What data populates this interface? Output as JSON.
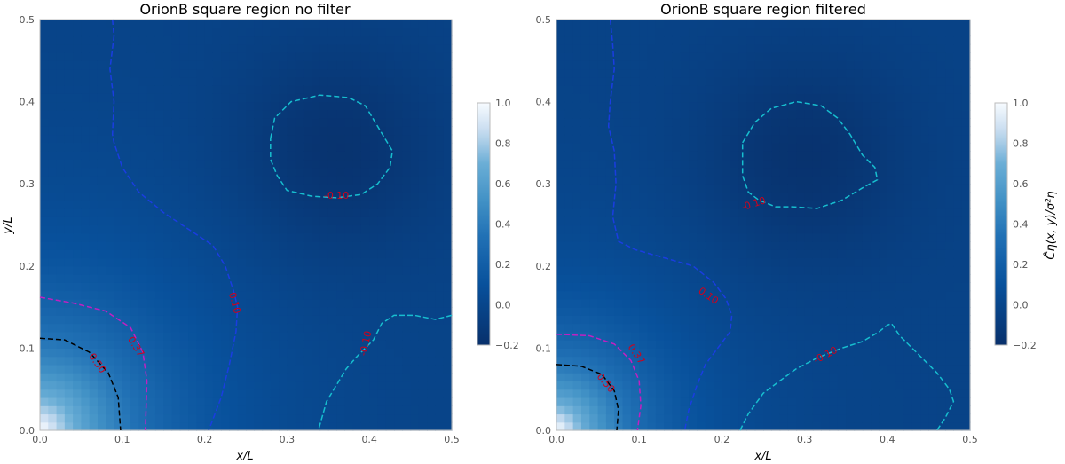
{
  "chart_data": [
    {
      "type": "heatmap",
      "title": "OrionB square region no filter",
      "xlabel": "x/L",
      "ylabel": "y/L",
      "xlim": [
        0.0,
        0.5
      ],
      "ylim": [
        0.0,
        0.5
      ],
      "xticks": [
        "0.0",
        "0.1",
        "0.2",
        "0.3",
        "0.4",
        "0.5"
      ],
      "yticks": [
        "0.0",
        "0.1",
        "0.2",
        "0.3",
        "0.4",
        "0.5"
      ],
      "colorbar": {
        "label": "",
        "range": [
          -0.2,
          1.0
        ],
        "ticks": [
          "−0.2",
          "0.0",
          "0.2",
          "0.4",
          "0.6",
          "0.8",
          "1.0"
        ],
        "colormap": "Blues_r"
      },
      "field": {
        "core_scale": 0.11,
        "min_center": [
          0.36,
          0.34
        ],
        "min_value": -0.15
      },
      "contours": [
        {
          "level": "0.50",
          "color": "#000000",
          "points": [
            [
              0.0,
              0.112
            ],
            [
              0.03,
              0.11
            ],
            [
              0.06,
              0.095
            ],
            [
              0.083,
              0.07
            ],
            [
              0.095,
              0.04
            ],
            [
              0.098,
              0.0
            ]
          ],
          "label": {
            "text": "0.50",
            "at": [
              0.07,
              0.082
            ],
            "angle": 55
          }
        },
        {
          "level": "0.37",
          "color": "#c21fc2",
          "points": [
            [
              0.0,
              0.162
            ],
            [
              0.04,
              0.155
            ],
            [
              0.08,
              0.145
            ],
            [
              0.11,
              0.125
            ],
            [
              0.125,
              0.095
            ],
            [
              0.13,
              0.06
            ],
            [
              0.128,
              0.0
            ]
          ],
          "label": {
            "text": "0.37",
            "at": [
              0.117,
              0.102
            ],
            "angle": 58
          }
        },
        {
          "level": "0.10",
          "color": "#1a3de0",
          "points": [
            [
              0.0,
              0.0
            ]
          ],
          "label": null
        },
        {
          "level": "0.10",
          "color": "#1a3de0",
          "points": [
            [
              0.088,
              0.5
            ],
            [
              0.09,
              0.48
            ],
            [
              0.085,
              0.44
            ],
            [
              0.09,
              0.4
            ],
            [
              0.088,
              0.36
            ],
            [
              0.09,
              0.35
            ],
            [
              0.1,
              0.32
            ],
            [
              0.12,
              0.29
            ],
            [
              0.15,
              0.265
            ],
            [
              0.18,
              0.245
            ],
            [
              0.21,
              0.225
            ],
            [
              0.225,
              0.2
            ],
            [
              0.235,
              0.17
            ],
            [
              0.24,
              0.15
            ],
            [
              0.238,
              0.12
            ],
            [
              0.23,
              0.08
            ],
            [
              0.22,
              0.04
            ],
            [
              0.205,
              0.0
            ]
          ],
          "label": {
            "text": "0.10",
            "at": [
              0.237,
              0.155
            ],
            "angle": 75
          }
        },
        {
          "level": "-0.10",
          "color": "#17becf",
          "points": [
            [
              0.28,
              0.355
            ],
            [
              0.285,
              0.38
            ],
            [
              0.305,
              0.4
            ],
            [
              0.34,
              0.408
            ],
            [
              0.375,
              0.405
            ],
            [
              0.395,
              0.395
            ],
            [
              0.41,
              0.37
            ],
            [
              0.428,
              0.34
            ],
            [
              0.425,
              0.32
            ],
            [
              0.41,
              0.3
            ],
            [
              0.39,
              0.287
            ],
            [
              0.36,
              0.283
            ],
            [
              0.33,
              0.285
            ],
            [
              0.3,
              0.292
            ],
            [
              0.288,
              0.31
            ],
            [
              0.28,
              0.33
            ],
            [
              0.28,
              0.355
            ]
          ],
          "label": {
            "text": "-0.10",
            "at": [
              0.36,
              0.286
            ],
            "angle": 0
          }
        },
        {
          "level": "-0.10",
          "color": "#17becf",
          "points": [
            [
              0.5,
              0.14
            ],
            [
              0.48,
              0.135
            ],
            [
              0.455,
              0.14
            ],
            [
              0.43,
              0.14
            ],
            [
              0.415,
              0.13
            ],
            [
              0.405,
              0.11
            ],
            [
              0.395,
              0.1
            ],
            [
              0.385,
              0.09
            ],
            [
              0.372,
              0.075
            ],
            [
              0.36,
              0.055
            ],
            [
              0.348,
              0.035
            ],
            [
              0.338,
              0.0
            ]
          ],
          "label": {
            "text": "-0.10",
            "at": [
              0.395,
              0.106
            ],
            "angle": -78
          }
        }
      ]
    },
    {
      "type": "heatmap",
      "title": "OrionB square region filtered",
      "xlabel": "x/L",
      "ylabel": "",
      "xlim": [
        0.0,
        0.5
      ],
      "ylim": [
        0.0,
        0.5
      ],
      "xticks": [
        "0.0",
        "0.1",
        "0.2",
        "0.3",
        "0.4",
        "0.5"
      ],
      "yticks": [
        "0.0",
        "0.1",
        "0.2",
        "0.3",
        "0.4",
        "0.5"
      ],
      "colorbar": {
        "label": "Ĉη(x, y)/σ²η",
        "range": [
          -0.2,
          1.0
        ],
        "ticks": [
          "−0.2",
          "0.0",
          "0.2",
          "0.4",
          "0.6",
          "0.8",
          "1.0"
        ],
        "colormap": "Blues_r"
      },
      "field": {
        "core_scale": 0.085,
        "min_center": [
          0.3,
          0.33
        ],
        "min_value": -0.15
      },
      "contours": [
        {
          "level": "0.50",
          "color": "#000000",
          "points": [
            [
              0.0,
              0.08
            ],
            [
              0.03,
              0.078
            ],
            [
              0.055,
              0.068
            ],
            [
              0.07,
              0.048
            ],
            [
              0.075,
              0.025
            ],
            [
              0.073,
              0.0
            ]
          ],
          "label": {
            "text": "0.50",
            "at": [
              0.06,
              0.058
            ],
            "angle": 50
          }
        },
        {
          "level": "0.37",
          "color": "#c21fc2",
          "points": [
            [
              0.0,
              0.117
            ],
            [
              0.04,
              0.115
            ],
            [
              0.07,
              0.105
            ],
            [
              0.09,
              0.085
            ],
            [
              0.1,
              0.06
            ],
            [
              0.102,
              0.03
            ],
            [
              0.098,
              0.0
            ]
          ],
          "label": {
            "text": "0.37",
            "at": [
              0.097,
              0.093
            ],
            "angle": 55
          }
        },
        {
          "level": "0.10",
          "color": "#1a3de0",
          "points": [
            [
              0.065,
              0.5
            ],
            [
              0.068,
              0.47
            ],
            [
              0.07,
              0.44
            ],
            [
              0.065,
              0.4
            ],
            [
              0.063,
              0.37
            ],
            [
              0.07,
              0.34
            ],
            [
              0.072,
              0.3
            ],
            [
              0.068,
              0.26
            ],
            [
              0.075,
              0.23
            ],
            [
              0.095,
              0.22
            ],
            [
              0.13,
              0.21
            ],
            [
              0.165,
              0.2
            ],
            [
              0.19,
              0.18
            ],
            [
              0.205,
              0.16
            ],
            [
              0.212,
              0.14
            ],
            [
              0.21,
              0.12
            ],
            [
              0.195,
              0.1
            ],
            [
              0.18,
              0.08
            ],
            [
              0.17,
              0.055
            ],
            [
              0.16,
              0.025
            ],
            [
              0.155,
              0.0
            ]
          ],
          "label": {
            "text": "0.10",
            "at": [
              0.184,
              0.164
            ],
            "angle": 35
          }
        },
        {
          "level": "-0.10",
          "color": "#17becf",
          "points": [
            [
              0.225,
              0.35
            ],
            [
              0.24,
              0.375
            ],
            [
              0.26,
              0.392
            ],
            [
              0.29,
              0.4
            ],
            [
              0.32,
              0.395
            ],
            [
              0.34,
              0.38
            ],
            [
              0.355,
              0.36
            ],
            [
              0.37,
              0.335
            ],
            [
              0.385,
              0.32
            ],
            [
              0.388,
              0.305
            ],
            [
              0.37,
              0.295
            ],
            [
              0.345,
              0.28
            ],
            [
              0.315,
              0.27
            ],
            [
              0.285,
              0.272
            ],
            [
              0.265,
              0.272
            ],
            [
              0.245,
              0.28
            ],
            [
              0.232,
              0.29
            ],
            [
              0.225,
              0.31
            ],
            [
              0.225,
              0.35
            ]
          ],
          "label": {
            "text": "-0.10",
            "at": [
              0.238,
              0.276
            ],
            "angle": -18
          }
        },
        {
          "level": "-0.10",
          "color": "#17becf",
          "points": [
            [
              0.222,
              0.0
            ],
            [
              0.232,
              0.02
            ],
            [
              0.25,
              0.045
            ],
            [
              0.27,
              0.06
            ],
            [
              0.29,
              0.075
            ],
            [
              0.315,
              0.088
            ],
            [
              0.345,
              0.1
            ],
            [
              0.37,
              0.108
            ],
            [
              0.39,
              0.12
            ],
            [
              0.4,
              0.128
            ],
            [
              0.405,
              0.13
            ],
            [
              0.415,
              0.115
            ],
            [
              0.43,
              0.1
            ],
            [
              0.445,
              0.085
            ],
            [
              0.46,
              0.07
            ],
            [
              0.475,
              0.05
            ],
            [
              0.48,
              0.035
            ],
            [
              0.47,
              0.015
            ],
            [
              0.46,
              0.0
            ]
          ],
          "label": {
            "text": "-0.10",
            "at": [
              0.325,
              0.092
            ],
            "angle": -28
          }
        }
      ]
    }
  ]
}
